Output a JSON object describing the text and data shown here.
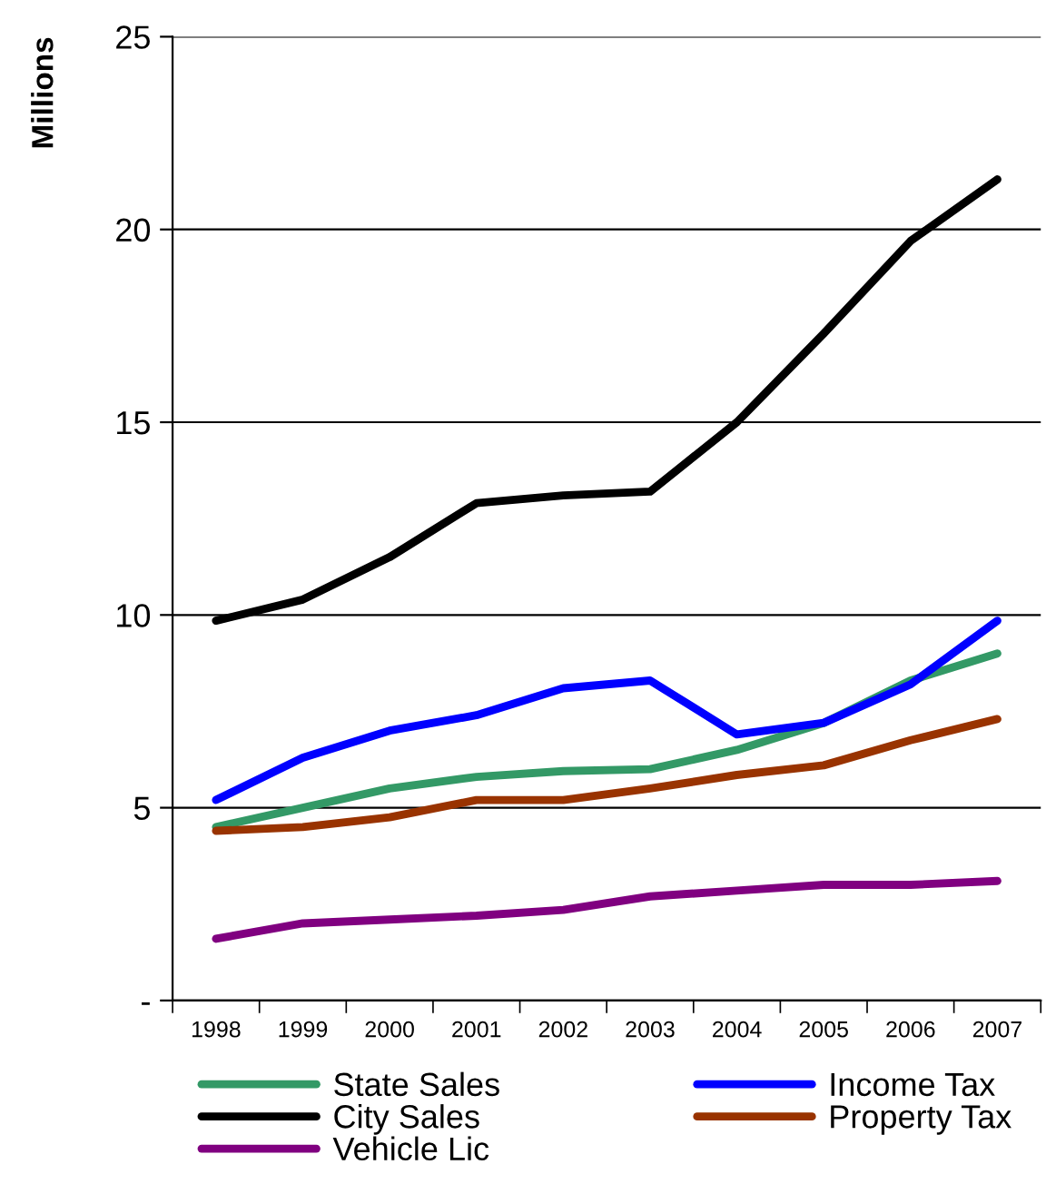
{
  "chart_data": {
    "type": "line",
    "ylabel": "Millions",
    "categories": [
      "1998",
      "1999",
      "2000",
      "2001",
      "2002",
      "2003",
      "2004",
      "2005",
      "2006",
      "2007"
    ],
    "series": [
      {
        "name": "State Sales",
        "color": "#339966",
        "values": [
          4.5,
          5.0,
          5.5,
          5.8,
          5.95,
          6.0,
          6.5,
          7.2,
          8.3,
          9.0
        ]
      },
      {
        "name": "Income Tax",
        "color": "#0000ff",
        "values": [
          5.2,
          6.3,
          7.0,
          7.4,
          8.1,
          8.3,
          6.9,
          7.2,
          8.2,
          9.85
        ]
      },
      {
        "name": "City Sales",
        "color": "#000000",
        "values": [
          9.85,
          10.4,
          11.5,
          12.9,
          13.1,
          13.2,
          15.0,
          17.3,
          19.7,
          21.3
        ]
      },
      {
        "name": "Property Tax",
        "color": "#993300",
        "values": [
          4.4,
          4.5,
          4.75,
          5.2,
          5.2,
          5.5,
          5.85,
          6.1,
          6.75,
          7.3
        ]
      },
      {
        "name": "Vehicle Lic",
        "color": "#800080",
        "values": [
          1.6,
          2.0,
          2.1,
          2.2,
          2.35,
          2.7,
          2.85,
          3.0,
          3.0,
          3.1
        ]
      }
    ],
    "ylim": [
      0,
      25
    ],
    "yticks": [
      {
        "value": 0,
        "label": "-"
      },
      5,
      10,
      15,
      20,
      25
    ],
    "grid": "y",
    "legend": "bottom",
    "marker": "none",
    "line_style": "solid"
  }
}
